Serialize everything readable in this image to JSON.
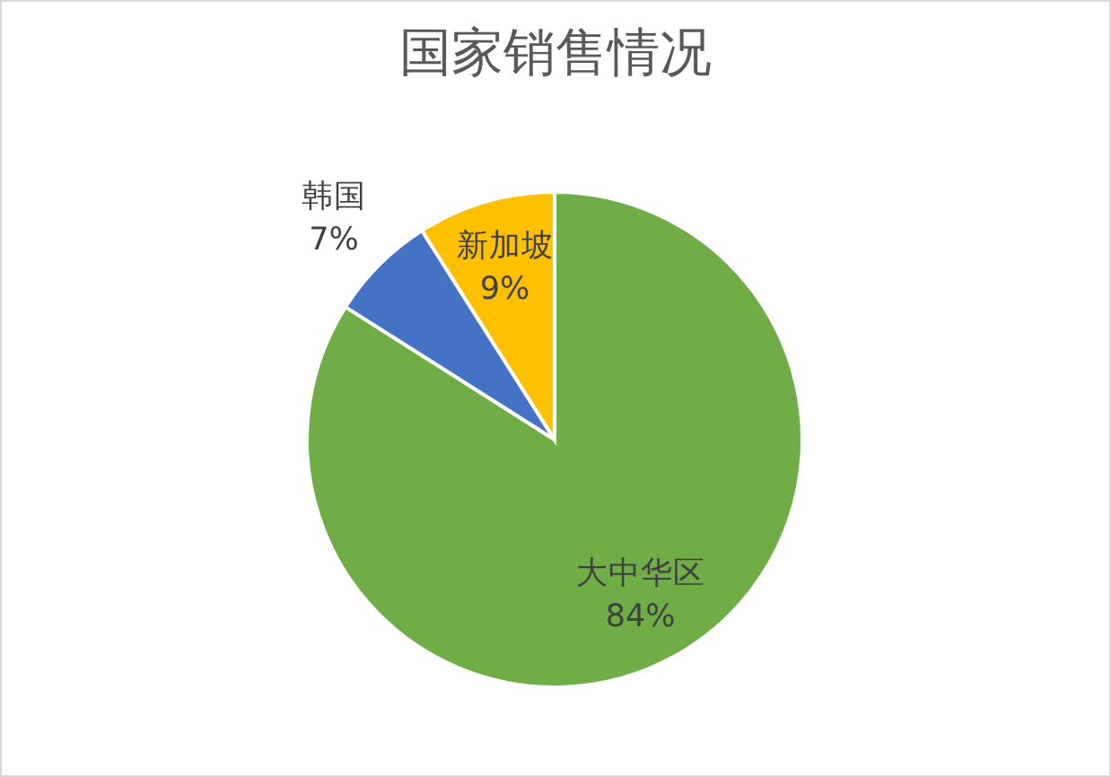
{
  "chart_data": {
    "type": "pie",
    "title": "国家销售情况",
    "categories": [
      "大中华区",
      "韩国",
      "新加坡"
    ],
    "values": [
      84,
      7,
      9
    ],
    "colors": [
      "#70ad47",
      "#4472c4",
      "#ffc000"
    ],
    "value_labels": [
      "84%",
      "7%",
      "9%"
    ]
  }
}
